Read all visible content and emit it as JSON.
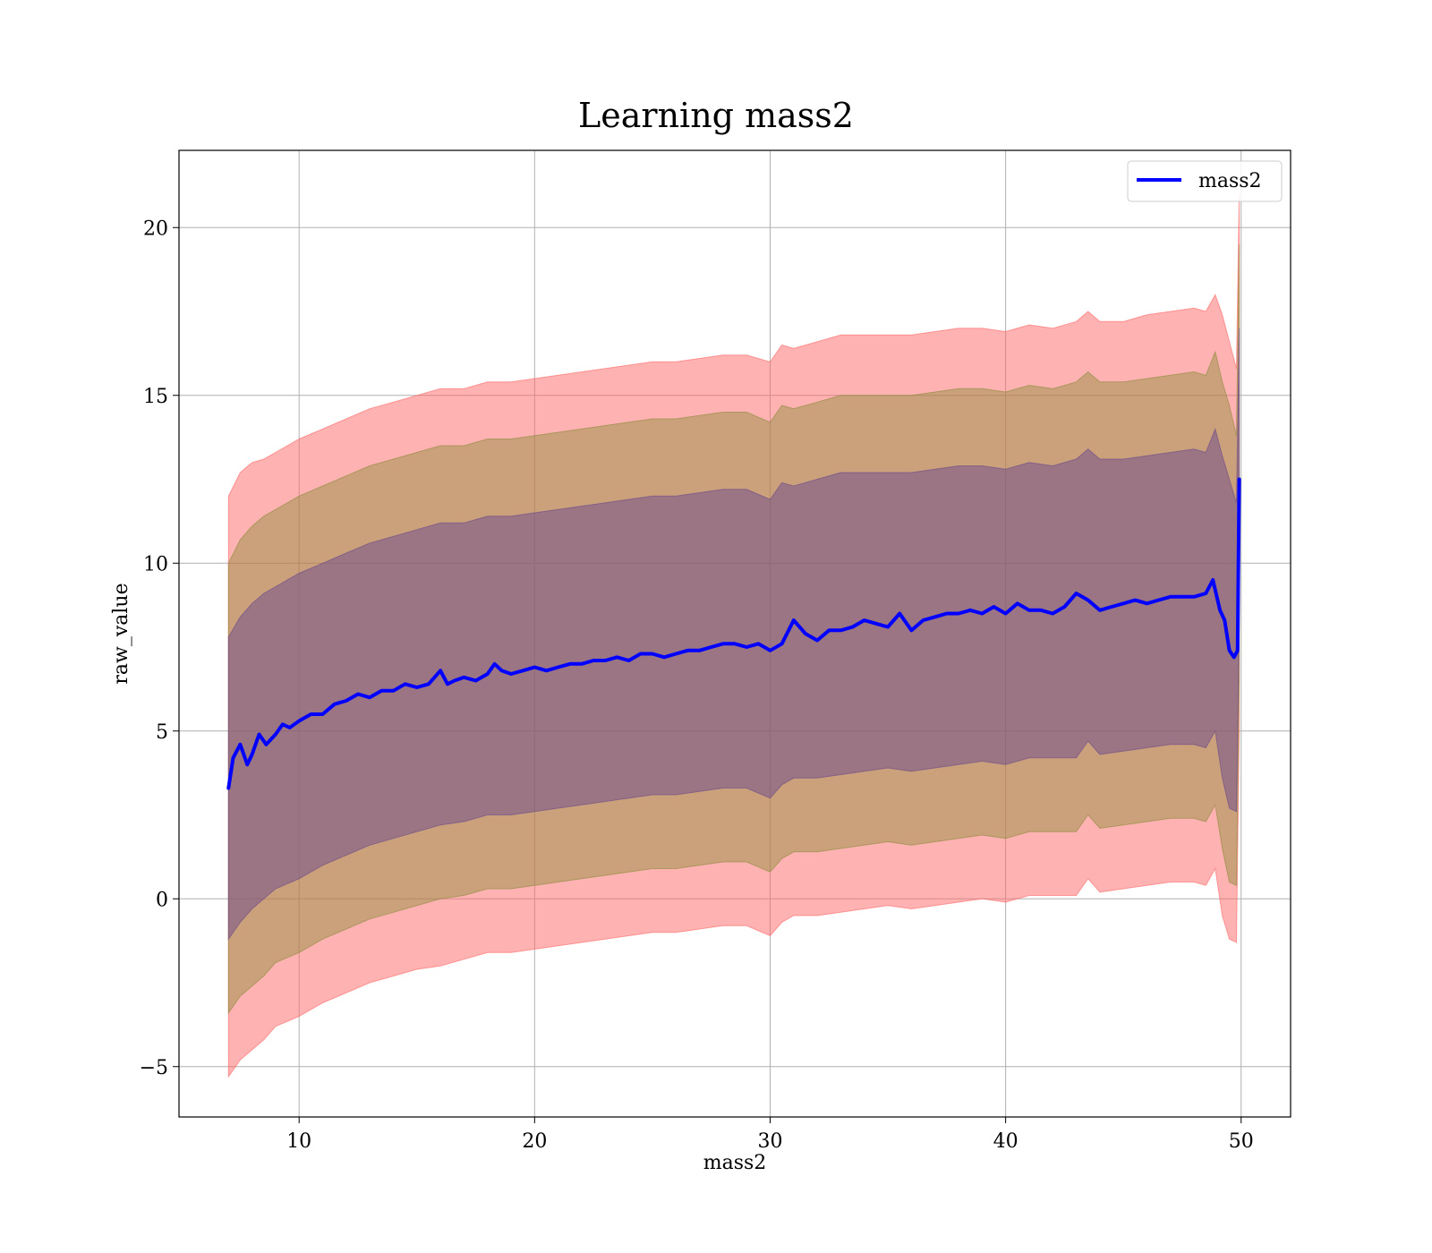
{
  "chart_data": {
    "type": "line",
    "title": "Learning mass2",
    "xlabel": "mass2",
    "ylabel": "raw_value",
    "xlim": [
      4.9,
      52.1
    ],
    "ylim": [
      -6.5,
      22.3
    ],
    "xticks": [
      10,
      20,
      30,
      40,
      50
    ],
    "yticks": [
      -5,
      0,
      5,
      10,
      15,
      20
    ],
    "xtick_labels": [
      "10",
      "20",
      "30",
      "40",
      "50"
    ],
    "ytick_labels": [
      "−5",
      "0",
      "5",
      "10",
      "15",
      "20"
    ],
    "grid": true,
    "legend_position": "upper right",
    "series": [
      {
        "name": "mass2",
        "color": "#0000ff",
        "x": [
          7.0,
          7.2,
          7.5,
          7.8,
          8.0,
          8.3,
          8.6,
          9.0,
          9.3,
          9.6,
          10.0,
          10.5,
          11.0,
          11.5,
          12.0,
          12.5,
          13.0,
          13.5,
          14.0,
          14.5,
          15.0,
          15.5,
          16.0,
          16.3,
          16.6,
          17.0,
          17.5,
          18.0,
          18.3,
          18.6,
          19.0,
          19.5,
          20.0,
          20.5,
          21.0,
          21.5,
          22.0,
          22.5,
          23.0,
          23.5,
          24.0,
          24.5,
          25.0,
          25.5,
          26.0,
          26.5,
          27.0,
          27.5,
          28.0,
          28.5,
          29.0,
          29.5,
          30.0,
          30.5,
          31.0,
          31.5,
          32.0,
          32.5,
          33.0,
          33.5,
          34.0,
          34.5,
          35.0,
          35.5,
          36.0,
          36.5,
          37.0,
          37.5,
          38.0,
          38.5,
          39.0,
          39.5,
          40.0,
          40.5,
          41.0,
          41.5,
          42.0,
          42.5,
          43.0,
          43.5,
          44.0,
          44.5,
          45.0,
          45.5,
          46.0,
          46.5,
          47.0,
          47.5,
          48.0,
          48.5,
          48.8,
          49.1,
          49.3,
          49.5,
          49.7,
          49.85,
          49.92
        ],
        "y": [
          3.3,
          4.2,
          4.6,
          4.0,
          4.3,
          4.9,
          4.6,
          4.9,
          5.2,
          5.1,
          5.3,
          5.5,
          5.5,
          5.8,
          5.9,
          6.1,
          6.0,
          6.2,
          6.2,
          6.4,
          6.3,
          6.4,
          6.8,
          6.4,
          6.5,
          6.6,
          6.5,
          6.7,
          7.0,
          6.8,
          6.7,
          6.8,
          6.9,
          6.8,
          6.9,
          7.0,
          7.0,
          7.1,
          7.1,
          7.2,
          7.1,
          7.3,
          7.3,
          7.2,
          7.3,
          7.4,
          7.4,
          7.5,
          7.6,
          7.6,
          7.5,
          7.6,
          7.4,
          7.6,
          8.3,
          7.9,
          7.7,
          8.0,
          8.0,
          8.1,
          8.3,
          8.2,
          8.1,
          8.5,
          8.0,
          8.3,
          8.4,
          8.5,
          8.5,
          8.6,
          8.5,
          8.7,
          8.5,
          8.8,
          8.6,
          8.6,
          8.5,
          8.7,
          9.1,
          8.9,
          8.6,
          8.7,
          8.8,
          8.9,
          8.8,
          8.9,
          9.0,
          9.0,
          9.0,
          9.1,
          9.5,
          8.6,
          8.3,
          7.4,
          7.2,
          7.4,
          12.5
        ]
      }
    ],
    "bands": [
      {
        "color": "#ff6666",
        "opacity": 0.5,
        "x": [
          7.0,
          7.5,
          8.0,
          8.5,
          9.0,
          10.0,
          11.0,
          12.0,
          13.0,
          14.0,
          15.0,
          16.0,
          17.0,
          18.0,
          19.0,
          20.0,
          21.0,
          22.0,
          23.0,
          24.0,
          25.0,
          26.0,
          27.0,
          28.0,
          29.0,
          30.0,
          30.5,
          31.0,
          32.0,
          33.0,
          34.0,
          35.0,
          36.0,
          37.0,
          38.0,
          39.0,
          40.0,
          41.0,
          42.0,
          43.0,
          43.5,
          44.0,
          45.0,
          46.0,
          47.0,
          48.0,
          48.5,
          48.9,
          49.2,
          49.5,
          49.8,
          49.92
        ],
        "upper": [
          12.0,
          12.7,
          13.0,
          13.1,
          13.3,
          13.7,
          14.0,
          14.3,
          14.6,
          14.8,
          15.0,
          15.2,
          15.2,
          15.4,
          15.4,
          15.5,
          15.6,
          15.7,
          15.8,
          15.9,
          16.0,
          16.0,
          16.1,
          16.2,
          16.2,
          16.0,
          16.5,
          16.4,
          16.6,
          16.8,
          16.8,
          16.8,
          16.8,
          16.9,
          17.0,
          17.0,
          16.9,
          17.1,
          17.0,
          17.2,
          17.5,
          17.2,
          17.2,
          17.4,
          17.5,
          17.6,
          17.5,
          18.0,
          17.4,
          16.6,
          15.8,
          21.0
        ],
        "lower": [
          -5.3,
          -4.8,
          -4.5,
          -4.2,
          -3.8,
          -3.5,
          -3.1,
          -2.8,
          -2.5,
          -2.3,
          -2.1,
          -2.0,
          -1.8,
          -1.6,
          -1.6,
          -1.5,
          -1.4,
          -1.3,
          -1.2,
          -1.1,
          -1.0,
          -1.0,
          -0.9,
          -0.8,
          -0.8,
          -1.1,
          -0.7,
          -0.5,
          -0.5,
          -0.4,
          -0.3,
          -0.2,
          -0.3,
          -0.2,
          -0.1,
          0.0,
          -0.1,
          0.1,
          0.1,
          0.1,
          0.6,
          0.2,
          0.3,
          0.4,
          0.5,
          0.5,
          0.4,
          0.9,
          -0.5,
          -1.2,
          -1.3,
          5.0
        ]
      },
      {
        "color": "#8b8b3a",
        "opacity": 0.45,
        "x": [
          7.0,
          7.5,
          8.0,
          8.5,
          9.0,
          10.0,
          11.0,
          12.0,
          13.0,
          14.0,
          15.0,
          16.0,
          17.0,
          18.0,
          19.0,
          20.0,
          21.0,
          22.0,
          23.0,
          24.0,
          25.0,
          26.0,
          27.0,
          28.0,
          29.0,
          30.0,
          30.5,
          31.0,
          32.0,
          33.0,
          34.0,
          35.0,
          36.0,
          37.0,
          38.0,
          39.0,
          40.0,
          41.0,
          42.0,
          43.0,
          43.5,
          44.0,
          45.0,
          46.0,
          47.0,
          48.0,
          48.5,
          48.9,
          49.2,
          49.5,
          49.8,
          49.92
        ],
        "upper": [
          10.0,
          10.7,
          11.1,
          11.4,
          11.6,
          12.0,
          12.3,
          12.6,
          12.9,
          13.1,
          13.3,
          13.5,
          13.5,
          13.7,
          13.7,
          13.8,
          13.9,
          14.0,
          14.1,
          14.2,
          14.3,
          14.3,
          14.4,
          14.5,
          14.5,
          14.2,
          14.7,
          14.6,
          14.8,
          15.0,
          15.0,
          15.0,
          15.0,
          15.1,
          15.2,
          15.2,
          15.1,
          15.3,
          15.2,
          15.4,
          15.7,
          15.4,
          15.4,
          15.5,
          15.6,
          15.7,
          15.6,
          16.3,
          15.4,
          14.7,
          13.8,
          19.5
        ],
        "lower": [
          -3.4,
          -2.9,
          -2.6,
          -2.3,
          -1.9,
          -1.6,
          -1.2,
          -0.9,
          -0.6,
          -0.4,
          -0.2,
          0.0,
          0.1,
          0.3,
          0.3,
          0.4,
          0.5,
          0.6,
          0.7,
          0.8,
          0.9,
          0.9,
          1.0,
          1.1,
          1.1,
          0.8,
          1.2,
          1.4,
          1.4,
          1.5,
          1.6,
          1.7,
          1.6,
          1.7,
          1.8,
          1.9,
          1.8,
          2.0,
          2.0,
          2.0,
          2.5,
          2.1,
          2.2,
          2.3,
          2.4,
          2.4,
          2.3,
          2.8,
          1.5,
          0.5,
          0.4,
          6.5
        ]
      },
      {
        "color": "#6b4a8a",
        "opacity": 0.5,
        "x": [
          7.0,
          7.5,
          8.0,
          8.5,
          9.0,
          10.0,
          11.0,
          12.0,
          13.0,
          14.0,
          15.0,
          16.0,
          17.0,
          18.0,
          19.0,
          20.0,
          21.0,
          22.0,
          23.0,
          24.0,
          25.0,
          26.0,
          27.0,
          28.0,
          29.0,
          30.0,
          30.5,
          31.0,
          32.0,
          33.0,
          34.0,
          35.0,
          36.0,
          37.0,
          38.0,
          39.0,
          40.0,
          41.0,
          42.0,
          43.0,
          43.5,
          44.0,
          45.0,
          46.0,
          47.0,
          48.0,
          48.5,
          48.9,
          49.2,
          49.5,
          49.8,
          49.92
        ],
        "upper": [
          7.8,
          8.4,
          8.8,
          9.1,
          9.3,
          9.7,
          10.0,
          10.3,
          10.6,
          10.8,
          11.0,
          11.2,
          11.2,
          11.4,
          11.4,
          11.5,
          11.6,
          11.7,
          11.8,
          11.9,
          12.0,
          12.0,
          12.1,
          12.2,
          12.2,
          11.9,
          12.4,
          12.3,
          12.5,
          12.7,
          12.7,
          12.7,
          12.7,
          12.8,
          12.9,
          12.9,
          12.8,
          13.0,
          12.9,
          13.1,
          13.4,
          13.1,
          13.1,
          13.2,
          13.3,
          13.4,
          13.3,
          14.0,
          13.2,
          12.5,
          11.8,
          17.0
        ],
        "lower": [
          -1.2,
          -0.7,
          -0.3,
          0.0,
          0.3,
          0.6,
          1.0,
          1.3,
          1.6,
          1.8,
          2.0,
          2.2,
          2.3,
          2.5,
          2.5,
          2.6,
          2.7,
          2.8,
          2.9,
          3.0,
          3.1,
          3.1,
          3.2,
          3.3,
          3.3,
          3.0,
          3.4,
          3.6,
          3.6,
          3.7,
          3.8,
          3.9,
          3.8,
          3.9,
          4.0,
          4.1,
          4.0,
          4.2,
          4.2,
          4.2,
          4.7,
          4.3,
          4.4,
          4.5,
          4.6,
          4.6,
          4.5,
          5.0,
          3.6,
          2.7,
          2.6,
          8.0
        ]
      }
    ]
  }
}
